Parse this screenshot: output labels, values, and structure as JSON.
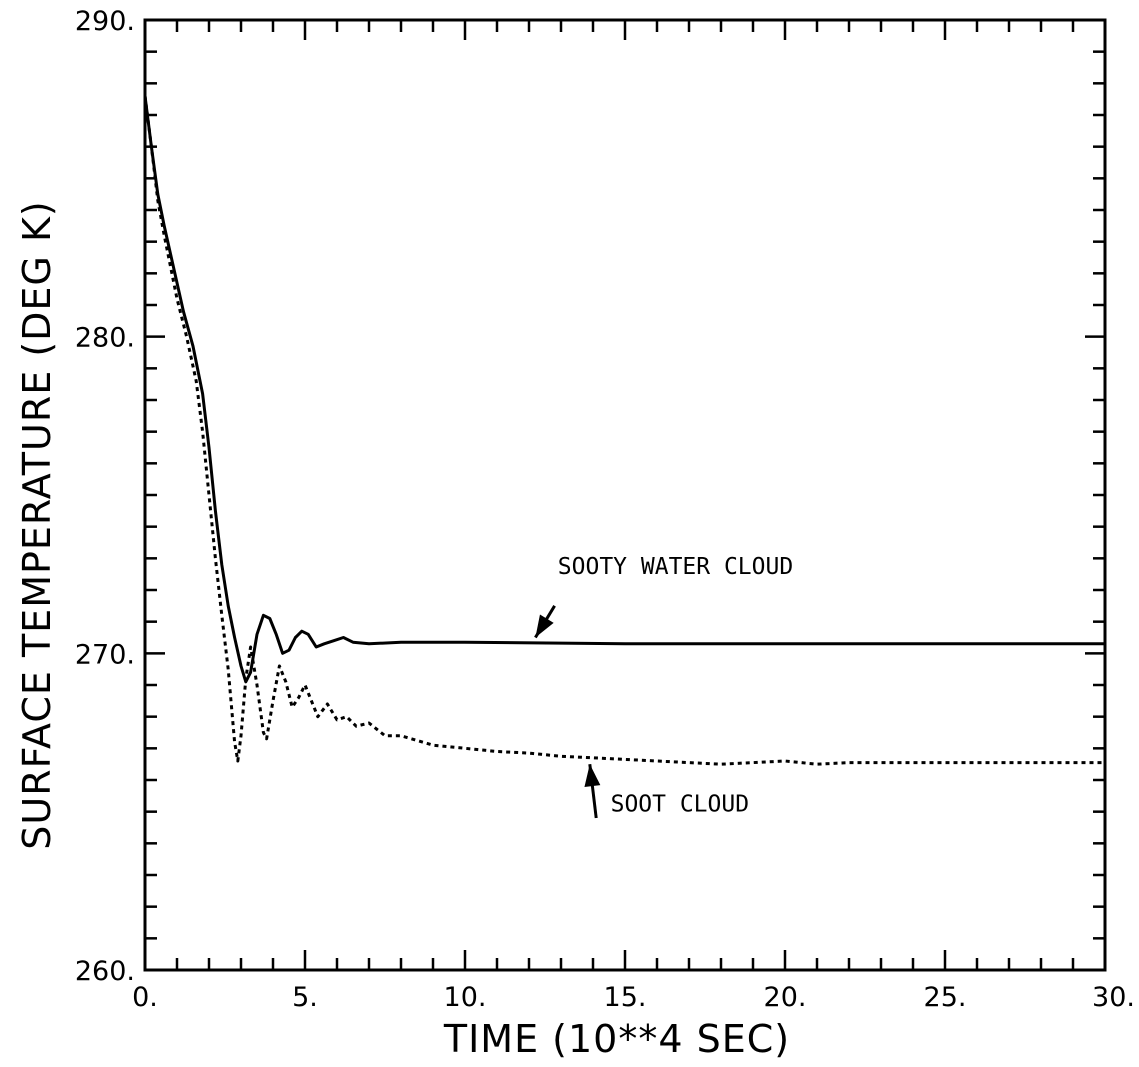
{
  "chart_data": {
    "type": "line",
    "title": "",
    "xlabel": "TIME (10**4 SEC)",
    "ylabel": "SURFACE TEMPERATURE (DEG K)",
    "xlim": [
      0,
      30
    ],
    "ylim": [
      260,
      290
    ],
    "x_ticks": [
      0,
      5,
      10,
      15,
      20,
      25,
      30
    ],
    "x_tick_labels": [
      "0.",
      "5.",
      "10.",
      "15.",
      "20.",
      "25.",
      "30."
    ],
    "y_ticks": [
      260,
      270,
      280,
      290
    ],
    "y_tick_labels": [
      "260.",
      "270.",
      "280.",
      "290."
    ],
    "grid": false,
    "series": [
      {
        "key": "sooty-water",
        "style": "solid",
        "color": "#000000",
        "points": [
          [
            0.0,
            287.6
          ],
          [
            0.2,
            286.0
          ],
          [
            0.4,
            284.5
          ],
          [
            0.6,
            283.5
          ],
          [
            0.8,
            282.6
          ],
          [
            1.0,
            281.7
          ],
          [
            1.2,
            280.8
          ],
          [
            1.5,
            279.7
          ],
          [
            1.8,
            278.2
          ],
          [
            2.0,
            276.5
          ],
          [
            2.2,
            274.5
          ],
          [
            2.4,
            272.8
          ],
          [
            2.6,
            271.5
          ],
          [
            2.8,
            270.5
          ],
          [
            3.0,
            269.6
          ],
          [
            3.15,
            269.1
          ],
          [
            3.3,
            269.4
          ],
          [
            3.5,
            270.6
          ],
          [
            3.7,
            271.2
          ],
          [
            3.9,
            271.1
          ],
          [
            4.1,
            270.6
          ],
          [
            4.3,
            270.0
          ],
          [
            4.5,
            270.1
          ],
          [
            4.7,
            270.5
          ],
          [
            4.9,
            270.7
          ],
          [
            5.1,
            270.6
          ],
          [
            5.35,
            270.2
          ],
          [
            5.6,
            270.3
          ],
          [
            5.9,
            270.4
          ],
          [
            6.2,
            270.5
          ],
          [
            6.5,
            270.35
          ],
          [
            7.0,
            270.3
          ],
          [
            8.0,
            270.35
          ],
          [
            10.0,
            270.35
          ],
          [
            15.0,
            270.3
          ],
          [
            20.0,
            270.3
          ],
          [
            25.0,
            270.3
          ],
          [
            30.0,
            270.3
          ]
        ]
      },
      {
        "key": "soot",
        "style": "dashed",
        "color": "#000000",
        "points": [
          [
            0.0,
            287.6
          ],
          [
            0.2,
            286.0
          ],
          [
            0.4,
            284.3
          ],
          [
            0.6,
            283.2
          ],
          [
            0.8,
            282.2
          ],
          [
            1.0,
            281.2
          ],
          [
            1.3,
            280.0
          ],
          [
            1.6,
            278.6
          ],
          [
            1.8,
            277.0
          ],
          [
            2.0,
            275.0
          ],
          [
            2.2,
            273.0
          ],
          [
            2.4,
            271.2
          ],
          [
            2.6,
            269.5
          ],
          [
            2.8,
            267.2
          ],
          [
            2.9,
            266.6
          ],
          [
            3.0,
            267.4
          ],
          [
            3.15,
            269.2
          ],
          [
            3.3,
            270.2
          ],
          [
            3.5,
            269.0
          ],
          [
            3.7,
            267.5
          ],
          [
            3.8,
            267.3
          ],
          [
            4.0,
            268.5
          ],
          [
            4.2,
            269.6
          ],
          [
            4.4,
            269.1
          ],
          [
            4.6,
            268.3
          ],
          [
            4.8,
            268.6
          ],
          [
            5.0,
            269.0
          ],
          [
            5.2,
            268.5
          ],
          [
            5.4,
            268.0
          ],
          [
            5.7,
            268.4
          ],
          [
            6.0,
            267.9
          ],
          [
            6.3,
            268.0
          ],
          [
            6.6,
            267.7
          ],
          [
            7.0,
            267.8
          ],
          [
            7.5,
            267.4
          ],
          [
            8.0,
            267.4
          ],
          [
            9.0,
            267.1
          ],
          [
            10.0,
            267.0
          ],
          [
            11.0,
            266.9
          ],
          [
            12.0,
            266.85
          ],
          [
            13.0,
            266.75
          ],
          [
            14.0,
            266.7
          ],
          [
            15.0,
            266.65
          ],
          [
            16.0,
            266.6
          ],
          [
            17.0,
            266.55
          ],
          [
            18.0,
            266.5
          ],
          [
            19.0,
            266.55
          ],
          [
            20.0,
            266.6
          ],
          [
            21.0,
            266.5
          ],
          [
            22.0,
            266.55
          ],
          [
            25.0,
            266.55
          ],
          [
            28.0,
            266.55
          ],
          [
            30.0,
            266.55
          ]
        ]
      }
    ],
    "annotations": [
      {
        "key": "sooty-water",
        "text": "SOOTY WATER CLOUD",
        "x": 12.9,
        "y": 272.5,
        "arrow_from": [
          12.8,
          271.5
        ],
        "arrow_to": [
          12.2,
          270.5
        ]
      },
      {
        "key": "soot",
        "text": "SOOT CLOUD",
        "x": 14.55,
        "y": 265.0,
        "arrow_from": [
          14.1,
          264.8
        ],
        "arrow_to": [
          13.9,
          266.5
        ]
      }
    ]
  }
}
